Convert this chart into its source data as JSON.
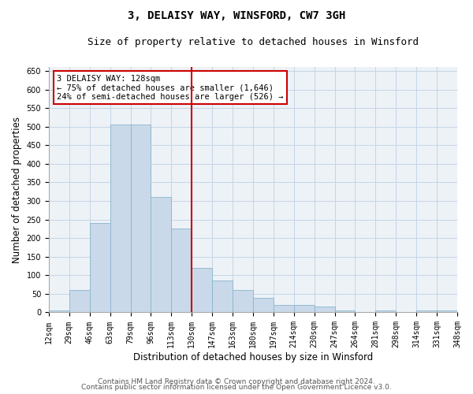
{
  "title": "3, DELAISY WAY, WINSFORD, CW7 3GH",
  "subtitle": "Size of property relative to detached houses in Winsford",
  "xlabel": "Distribution of detached houses by size in Winsford",
  "ylabel": "Number of detached properties",
  "footer_line1": "Contains HM Land Registry data © Crown copyright and database right 2024.",
  "footer_line2": "Contains public sector information licensed under the Open Government Licence v3.0.",
  "annotation_line1": "3 DELAISY WAY: 128sqm",
  "annotation_line2": "← 75% of detached houses are smaller (1,646)",
  "annotation_line3": "24% of semi-detached houses are larger (526) →",
  "bar_values": [
    5,
    60,
    240,
    505,
    505,
    310,
    225,
    120,
    85,
    60,
    40,
    20,
    20,
    15,
    5,
    0,
    5,
    0,
    5,
    5
  ],
  "bin_labels": [
    "12sqm",
    "29sqm",
    "46sqm",
    "63sqm",
    "79sqm",
    "96sqm",
    "113sqm",
    "130sqm",
    "147sqm",
    "163sqm",
    "180sqm",
    "197sqm",
    "214sqm",
    "230sqm",
    "247sqm",
    "264sqm",
    "281sqm",
    "298sqm",
    "314sqm",
    "331sqm",
    "348sqm"
  ],
  "bar_color": "#c9d9e9",
  "bar_edge_color": "#8ab4cc",
  "ref_line_color": "#cc0000",
  "ylim": [
    0,
    660
  ],
  "yticks": [
    0,
    50,
    100,
    150,
    200,
    250,
    300,
    350,
    400,
    450,
    500,
    550,
    600,
    650
  ],
  "grid_color": "#c5d5e5",
  "bg_color": "#edf2f7",
  "annotation_box_edge_color": "#cc0000",
  "title_fontsize": 10,
  "subtitle_fontsize": 9,
  "axis_label_fontsize": 8.5,
  "tick_fontsize": 7,
  "annotation_fontsize": 7.5,
  "footer_fontsize": 6.5
}
